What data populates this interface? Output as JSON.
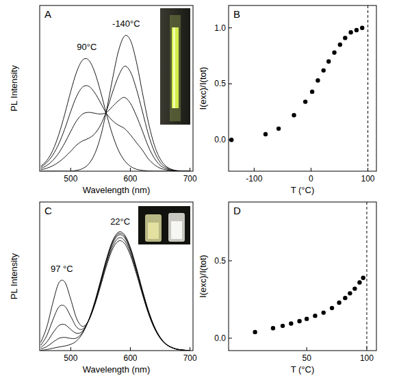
{
  "chart_data": [
    {
      "type": "line",
      "title": "A",
      "x_label": "Wavelength (nm)",
      "y_label": "PL Intensity",
      "color": "#000000",
      "x": [
        450,
        460,
        470,
        480,
        490,
        500,
        510,
        520,
        530,
        540,
        550,
        560,
        570,
        580,
        590,
        600,
        610,
        620,
        630,
        640,
        650,
        660,
        670,
        680,
        690,
        700
      ],
      "series": [
        {
          "values": [
            0.03,
            0.065,
            0.126,
            0.221,
            0.344,
            0.481,
            0.6,
            0.671,
            0.671,
            0.6,
            0.481,
            0.344,
            0.221,
            0.126,
            0.065,
            0.03,
            0.012,
            0.005,
            0.001,
            0,
            0,
            0,
            0,
            0,
            0,
            0
          ]
        },
        {
          "values": [
            0.023,
            0.053,
            0.098,
            0.165,
            0.255,
            0.36,
            0.453,
            0.508,
            0.513,
            0.475,
            0.413,
            0.348,
            0.305,
            0.278,
            0.258,
            0.22,
            0.173,
            0.128,
            0.075,
            0.04,
            0.018,
            0.008,
            0.003,
            0,
            0,
            0
          ]
        },
        {
          "values": [
            0.015,
            0.035,
            0.065,
            0.11,
            0.17,
            0.24,
            0.305,
            0.345,
            0.355,
            0.35,
            0.345,
            0.355,
            0.39,
            0.425,
            0.445,
            0.41,
            0.335,
            0.245,
            0.15,
            0.08,
            0.035,
            0.015,
            0.005,
            0,
            0,
            0
          ]
        },
        {
          "values": [
            0.008,
            0.018,
            0.033,
            0.055,
            0.085,
            0.12,
            0.158,
            0.183,
            0.198,
            0.225,
            0.278,
            0.363,
            0.475,
            0.573,
            0.633,
            0.6,
            0.498,
            0.363,
            0.225,
            0.12,
            0.053,
            0.023,
            0.008,
            0,
            0,
            0
          ]
        },
        {
          "values": [
            0,
            0,
            0,
            0,
            0,
            0,
            0.005,
            0.016,
            0.043,
            0.102,
            0.208,
            0.367,
            0.555,
            0.724,
            0.815,
            0.791,
            0.662,
            0.478,
            0.298,
            0.16,
            0.074,
            0.03,
            0.01,
            0.003,
            0.001,
            0
          ]
        }
      ],
      "xlim": [
        448,
        705
      ],
      "ylim": [
        0,
        1
      ],
      "xticks": [
        500,
        600,
        700
      ],
      "tick_labels": "x",
      "annotations": [
        {
          "text": "90°C",
          "x": 527,
          "y": 0.73
        },
        {
          "text": "-140°C",
          "x": 593,
          "y": 0.87
        }
      ]
    },
    {
      "type": "scatter",
      "title": "B",
      "x_label": "T (°C)",
      "y_label": "I(exc)/I(tot)",
      "color": "#000000",
      "marker": "circle",
      "x": [
        -140,
        -80,
        -57,
        -30,
        -10,
        2,
        12,
        22,
        31,
        41,
        51,
        60,
        70,
        80,
        90
      ],
      "values": [
        0,
        0.05,
        0.1,
        0.22,
        0.34,
        0.43,
        0.53,
        0.62,
        0.7,
        0.78,
        0.85,
        0.91,
        0.96,
        0.98,
        1.0
      ],
      "xlim": [
        -145,
        115
      ],
      "ylim": [
        -0.28,
        1.2
      ],
      "xticks": [
        -100,
        0,
        100
      ],
      "yticks": [
        {
          "value": 0,
          "label": "0.0"
        },
        {
          "value": 0.5,
          "label": "0.5"
        },
        {
          "value": 1,
          "label": "1.0"
        }
      ],
      "vline": 100
    },
    {
      "type": "line",
      "title": "C",
      "x_label": "Wavelength (nm)",
      "y_label": "PL Intensity",
      "color": "#000000",
      "x": [
        450,
        460,
        470,
        480,
        490,
        500,
        510,
        520,
        530,
        540,
        550,
        560,
        570,
        580,
        590,
        600,
        610,
        620,
        630,
        640,
        650,
        660,
        670,
        680,
        690,
        700
      ],
      "series": [
        {
          "values": [
            0.002,
            0.007,
            0.016,
            0.024,
            0.031,
            0.042,
            0.066,
            0.117,
            0.204,
            0.324,
            0.47,
            0.618,
            0.737,
            0.797,
            0.781,
            0.694,
            0.56,
            0.41,
            0.272,
            0.164,
            0.09,
            0.044,
            0.02,
            0.008,
            0.003,
            0.001
          ]
        },
        {
          "values": [
            0.01,
            0.027,
            0.056,
            0.082,
            0.089,
            0.082,
            0.085,
            0.124,
            0.203,
            0.32,
            0.464,
            0.61,
            0.728,
            0.787,
            0.771,
            0.686,
            0.553,
            0.405,
            0.269,
            0.162,
            0.088,
            0.043,
            0.02,
            0.008,
            0.003,
            0.001
          ]
        },
        {
          "values": [
            0.02,
            0.058,
            0.118,
            0.168,
            0.175,
            0.143,
            0.116,
            0.132,
            0.203,
            0.317,
            0.458,
            0.602,
            0.718,
            0.777,
            0.761,
            0.677,
            0.546,
            0.4,
            0.265,
            0.16,
            0.087,
            0.043,
            0.02,
            0.008,
            0.003,
            0.001
          ]
        },
        {
          "values": [
            0.036,
            0.102,
            0.206,
            0.293,
            0.299,
            0.231,
            0.158,
            0.145,
            0.202,
            0.31,
            0.446,
            0.587,
            0.7,
            0.757,
            0.742,
            0.66,
            0.532,
            0.39,
            0.258,
            0.156,
            0.085,
            0.042,
            0.019,
            0.008,
            0.003,
            0.001
          ]
        },
        {
          "values": [
            0.056,
            0.16,
            0.321,
            0.455,
            0.462,
            0.346,
            0.215,
            0.163,
            0.202,
            0.302,
            0.434,
            0.571,
            0.682,
            0.737,
            0.722,
            0.642,
            0.518,
            0.38,
            0.252,
            0.152,
            0.083,
            0.041,
            0.019,
            0.007,
            0.003,
            0.001
          ]
        }
      ],
      "xlim": [
        448,
        705
      ],
      "ylim": [
        0,
        1
      ],
      "xticks": [
        500,
        600,
        700
      ],
      "tick_labels": "x",
      "annotations": [
        {
          "text": "97 °C",
          "x": 485,
          "y": 0.53
        },
        {
          "text": "22°C",
          "x": 583,
          "y": 0.85
        }
      ]
    },
    {
      "type": "scatter",
      "title": "D",
      "x_label": "T (°C)",
      "y_label": "I(exc)/I(tot)",
      "color": "#000000",
      "marker": "circle",
      "x": [
        7,
        22,
        30,
        37,
        44,
        50,
        57,
        64,
        71,
        77,
        82,
        86,
        90,
        94,
        97
      ],
      "values": [
        0.04,
        0.065,
        0.08,
        0.095,
        0.11,
        0.125,
        0.145,
        0.165,
        0.195,
        0.23,
        0.26,
        0.29,
        0.32,
        0.36,
        0.39
      ],
      "xlim": [
        -15,
        108
      ],
      "ylim": [
        -0.08,
        0.88
      ],
      "xticks": [
        50,
        100
      ],
      "yticks": [
        {
          "value": 0,
          "label": "0.0"
        },
        {
          "value": 0.5,
          "label": "0.5"
        }
      ],
      "vline": 100
    }
  ]
}
